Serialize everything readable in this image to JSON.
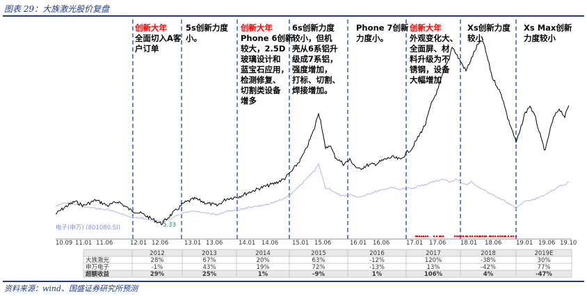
{
  "title": "图表 29：大族激光股价复盘",
  "source": "资料来源：wind、国盛证券研究所预测",
  "colors": {
    "stock": "#000000",
    "index": "#b8c3ee",
    "highlight": "#ff0000",
    "marker": "#ff0000",
    "divider": "#1f4fd0",
    "green": "#00b050"
  },
  "chart_data": {
    "type": "line",
    "series": [
      {
        "name": "",
        "color": "#000000"
      },
      {
        "name": "电子(申万) (801080.SI)",
        "color": "#b8c3ee"
      }
    ],
    "x_ticks": [
      "10.09",
      "11.01",
      "11.06",
      "12.01",
      "12.06",
      "13.01",
      "13.06",
      "14.01",
      "14.06",
      "15.01",
      "15.06",
      "16.01",
      "16.06",
      "17.01",
      "17.06",
      "18.01",
      "18.06",
      "19.01",
      "19.06",
      "19.10"
    ],
    "min_label": "5.33",
    "annotations": [
      {
        "highlight": "创新大年",
        "lines": [
          "全面切入A客",
          "户订单"
        ]
      },
      {
        "highlight": "",
        "lines": [
          "5s创新力度",
          "小。"
        ]
      },
      {
        "highlight": "创新大年",
        "lines": [
          "Phone 6创新",
          "较大，2.5D",
          "玻璃设计和",
          "蓝宝石应用，",
          "检测修复、",
          "切割类设备",
          "增多"
        ]
      },
      {
        "highlight": "",
        "lines": [
          "6s创新力度",
          "较小，但机",
          "壳从6系铝升",
          "级成7系铝，",
          "强度增加，",
          "打标、切割、",
          "焊接增加。"
        ]
      },
      {
        "highlight": "",
        "lines": [
          "Phone 7创新",
          "力度小。"
        ]
      },
      {
        "highlight": "创新大年",
        "lines": [
          "外观变化大、",
          "全面屏、材",
          "料升级为不",
          "锈钢，设备",
          "大幅增加"
        ]
      },
      {
        "highlight": "",
        "lines": [
          "Xs创新力度",
          "较小"
        ]
      },
      {
        "highlight": "",
        "lines": [
          "Xs Max创新",
          "力度较小"
        ]
      }
    ],
    "table": {
      "headers": [
        "",
        "2012",
        "2013",
        "2014",
        "2015",
        "2016",
        "2017",
        "2018",
        "2019E"
      ],
      "rows": [
        {
          "label": "大族激光",
          "values": [
            "28%",
            "67%",
            "20%",
            "63%",
            "-12%",
            "120%",
            "-38%",
            "30%"
          ]
        },
        {
          "label": "申万电子",
          "values": [
            "-1%",
            "43%",
            "19%",
            "72%",
            "-13%",
            "13%",
            "-42%",
            "77%"
          ]
        },
        {
          "label": "超额收益",
          "values": [
            "29%",
            "25%",
            "1%",
            "-9%",
            "1%",
            "106%",
            "4%",
            "-47%"
          ]
        }
      ]
    }
  }
}
